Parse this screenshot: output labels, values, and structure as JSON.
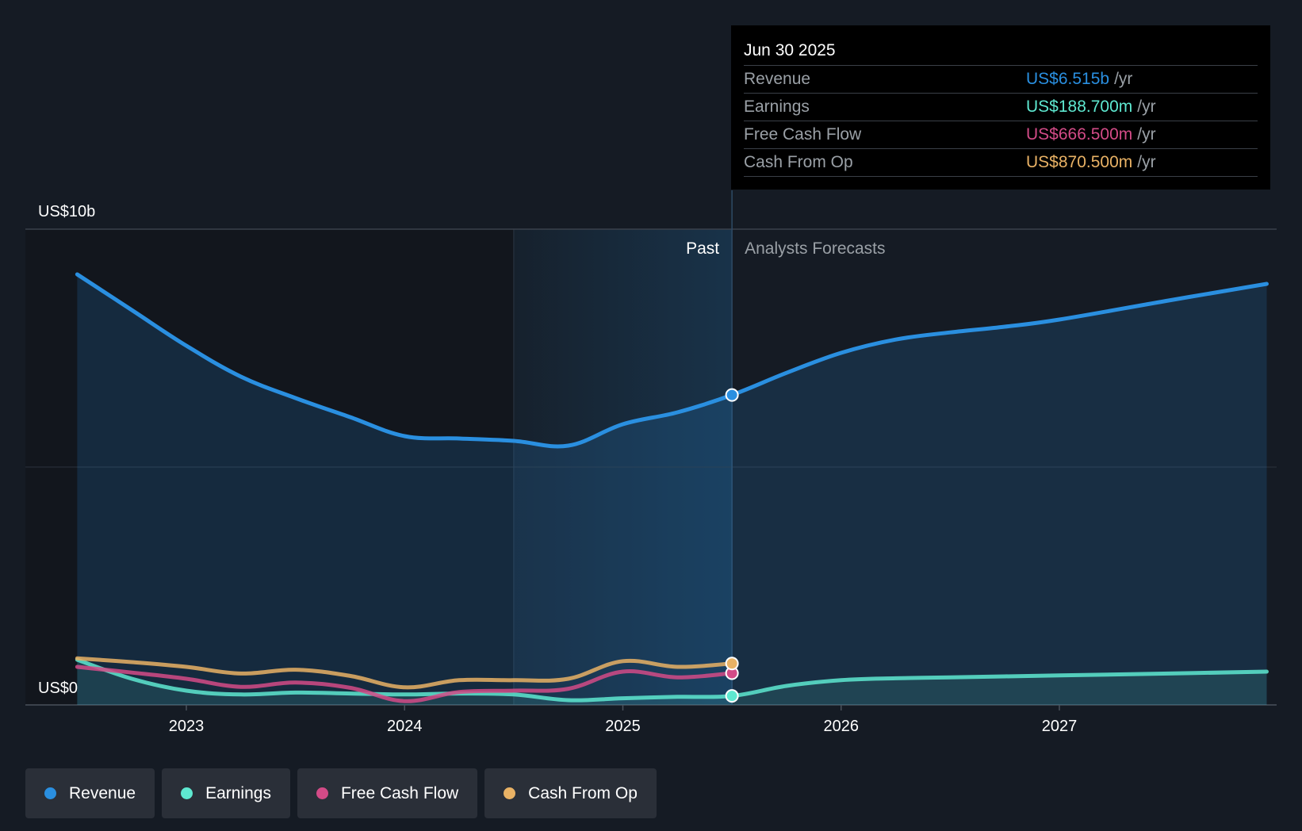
{
  "tooltip": {
    "date": "Jun 30 2025",
    "rows": [
      {
        "name": "Revenue",
        "value": "US$6.515b",
        "unit": "/yr",
        "color": "#2a8fe0"
      },
      {
        "name": "Earnings",
        "value": "US$188.700m",
        "unit": "/yr",
        "color": "#5ee8d0"
      },
      {
        "name": "Free Cash Flow",
        "value": "US$666.500m",
        "unit": "/yr",
        "color": "#d34b87"
      },
      {
        "name": "Cash From Op",
        "value": "US$870.500m",
        "unit": "/yr",
        "color": "#e9b265"
      }
    ]
  },
  "legend": [
    {
      "label": "Revenue",
      "color": "#2a8fe0"
    },
    {
      "label": "Earnings",
      "color": "#5ee8d0"
    },
    {
      "label": "Free Cash Flow",
      "color": "#d34b87"
    },
    {
      "label": "Cash From Op",
      "color": "#e9b265"
    }
  ],
  "chart_data": {
    "type": "line",
    "title": "",
    "xlabel": "",
    "ylabel": "",
    "ylim": [
      0,
      10
    ],
    "y_unit": "US$ billions",
    "y_tick_labels": [
      {
        "value": 10,
        "label": "US$10b"
      },
      {
        "value": 0,
        "label": "US$0"
      }
    ],
    "xlim": [
      2022.35,
      2027.95
    ],
    "x_ticks": [
      2023,
      2024,
      2025,
      2026,
      2027
    ],
    "x_tick_labels": [
      "2023",
      "2024",
      "2025",
      "2026",
      "2027"
    ],
    "past_label": "Past",
    "forecast_label": "Analysts Forecasts",
    "past_end": 2025.5,
    "highlight_start": 2024.5,
    "series": [
      {
        "name": "Revenue",
        "color": "#2a8fe0",
        "area": true,
        "marker_at_end_of_past": true,
        "points": [
          [
            2022.5,
            9.05
          ],
          [
            2022.75,
            8.3
          ],
          [
            2023.0,
            7.55
          ],
          [
            2023.25,
            6.9
          ],
          [
            2023.5,
            6.45
          ],
          [
            2023.75,
            6.05
          ],
          [
            2024.0,
            5.65
          ],
          [
            2024.25,
            5.6
          ],
          [
            2024.5,
            5.55
          ],
          [
            2024.75,
            5.45
          ],
          [
            2025.0,
            5.9
          ],
          [
            2025.25,
            6.15
          ],
          [
            2025.5,
            6.515
          ],
          [
            2025.75,
            6.98
          ],
          [
            2026.0,
            7.4
          ],
          [
            2026.25,
            7.68
          ],
          [
            2026.5,
            7.83
          ],
          [
            2026.75,
            7.95
          ],
          [
            2027.0,
            8.1
          ],
          [
            2027.5,
            8.5
          ],
          [
            2027.95,
            8.85
          ]
        ]
      },
      {
        "name": "Earnings",
        "color": "#5ee8d0",
        "area": true,
        "marker_at_end_of_past": true,
        "points": [
          [
            2022.5,
            0.95
          ],
          [
            2022.75,
            0.55
          ],
          [
            2023.0,
            0.3
          ],
          [
            2023.25,
            0.22
          ],
          [
            2023.5,
            0.26
          ],
          [
            2023.75,
            0.24
          ],
          [
            2024.0,
            0.22
          ],
          [
            2024.25,
            0.24
          ],
          [
            2024.5,
            0.22
          ],
          [
            2024.75,
            0.1
          ],
          [
            2025.0,
            0.14
          ],
          [
            2025.25,
            0.17
          ],
          [
            2025.5,
            0.189
          ],
          [
            2025.75,
            0.4
          ],
          [
            2026.0,
            0.52
          ],
          [
            2026.25,
            0.56
          ],
          [
            2026.5,
            0.58
          ],
          [
            2026.75,
            0.6
          ],
          [
            2027.0,
            0.62
          ],
          [
            2027.5,
            0.66
          ],
          [
            2027.95,
            0.7
          ]
        ]
      },
      {
        "name": "Free Cash Flow",
        "color": "#d34b87",
        "area": false,
        "marker_at_end_of_past": true,
        "points": [
          [
            2022.5,
            0.8
          ],
          [
            2022.75,
            0.68
          ],
          [
            2023.0,
            0.55
          ],
          [
            2023.25,
            0.38
          ],
          [
            2023.5,
            0.47
          ],
          [
            2023.75,
            0.36
          ],
          [
            2024.0,
            0.08
          ],
          [
            2024.25,
            0.27
          ],
          [
            2024.5,
            0.3
          ],
          [
            2024.75,
            0.34
          ],
          [
            2025.0,
            0.7
          ],
          [
            2025.25,
            0.58
          ],
          [
            2025.5,
            0.6665
          ]
        ]
      },
      {
        "name": "Cash From Op",
        "color": "#e9b265",
        "area": false,
        "marker_at_end_of_past": true,
        "points": [
          [
            2022.5,
            0.98
          ],
          [
            2022.75,
            0.9
          ],
          [
            2023.0,
            0.8
          ],
          [
            2023.25,
            0.66
          ],
          [
            2023.5,
            0.74
          ],
          [
            2023.75,
            0.61
          ],
          [
            2024.0,
            0.37
          ],
          [
            2024.25,
            0.52
          ],
          [
            2024.5,
            0.52
          ],
          [
            2024.75,
            0.55
          ],
          [
            2025.0,
            0.92
          ],
          [
            2025.25,
            0.8
          ],
          [
            2025.5,
            0.8705
          ]
        ]
      }
    ]
  }
}
